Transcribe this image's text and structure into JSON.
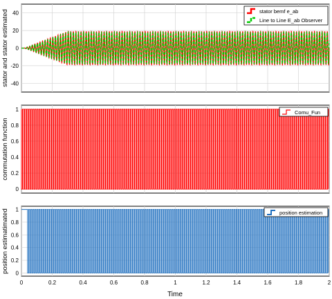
{
  "figure": {
    "xlabel": "Time"
  },
  "chart_data": [
    {
      "type": "line",
      "ylabel": "stator and stator estimated",
      "xlim": [
        0,
        2
      ],
      "ylim": [
        -50,
        50
      ],
      "xticks": [
        "0",
        "0.2",
        "0.4",
        "0.6",
        "0.8",
        "1",
        "1.2",
        "1.4",
        "1.6",
        "1.8",
        "2"
      ],
      "yticks": [
        "40",
        "20",
        "0",
        "-20",
        "-40"
      ],
      "ytick_values": [
        40,
        20,
        0,
        -20,
        -40
      ],
      "grid": true,
      "legend_position": "top-right",
      "series": [
        {
          "name": "stator bemf e_ab",
          "color": "#ff0000",
          "steady_amplitude": 19,
          "ramp_end_time": 0.3
        },
        {
          "name": "Line to Line E_ab Observer",
          "color": "#00cc00",
          "steady_amplitude": 18,
          "ramp_end_time": 0.3
        }
      ]
    },
    {
      "type": "line",
      "ylabel": "commutation function",
      "xlim": [
        0,
        2
      ],
      "ylim": [
        -0.05,
        1.05
      ],
      "xticks": [
        "0",
        "0.2",
        "0.4",
        "0.6",
        "0.8",
        "1",
        "1.2",
        "1.4",
        "1.6",
        "1.8",
        "2"
      ],
      "yticks": [
        "1",
        "0.8",
        "0.6",
        "0.4",
        "0.2",
        "0"
      ],
      "ytick_values": [
        1,
        0.8,
        0.6,
        0.4,
        0.2,
        0
      ],
      "grid": true,
      "legend_position": "top-right",
      "series": [
        {
          "name": "Comu_Fun",
          "color": "#ff0000",
          "low": 0,
          "high": 1,
          "switching_start": 0.0
        }
      ]
    },
    {
      "type": "line",
      "ylabel": "position estimatimated",
      "xlim": [
        0,
        2
      ],
      "ylim": [
        -0.05,
        1.05
      ],
      "xticks": [
        "0",
        "0.2",
        "0.4",
        "0.6",
        "0.8",
        "1",
        "1.2",
        "1.4",
        "1.6",
        "1.8",
        "2"
      ],
      "yticks": [
        "1",
        "0.8",
        "0.6",
        "0.4",
        "0.2",
        "0"
      ],
      "ytick_values": [
        1,
        0.8,
        0.6,
        0.4,
        0.2,
        0
      ],
      "grid": true,
      "legend_position": "top-right",
      "series": [
        {
          "name": "position estimation",
          "color": "#1f6fbf",
          "low": 0,
          "high": 1,
          "switching_start": 0.04
        }
      ]
    }
  ]
}
